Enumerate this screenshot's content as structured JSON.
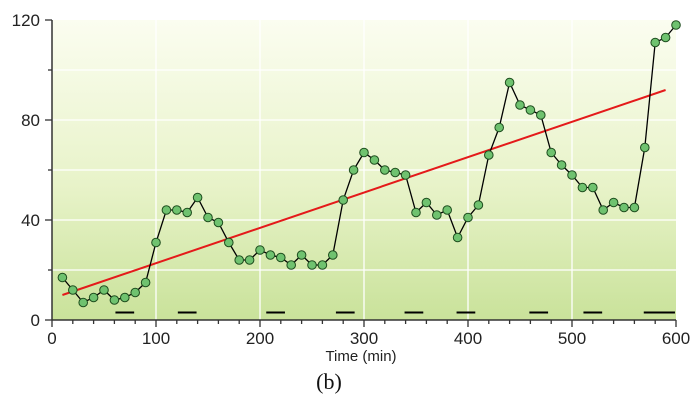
{
  "chart_data": {
    "type": "line",
    "title": "",
    "caption": "(b)",
    "xlabel": "Time (min)",
    "ylabel": "",
    "xlim": [
      0,
      600
    ],
    "ylim": [
      0,
      120
    ],
    "xticks": [
      "0",
      "100",
      "200",
      "300",
      "400",
      "500",
      "600"
    ],
    "yticks": [
      "0",
      "40",
      "80",
      "120"
    ],
    "grid": true,
    "background": "vertical gradient, pale yellow-green to light green",
    "series": [
      {
        "kind": "line-with-markers",
        "color": "#000000",
        "marker_color": "#6fc26f",
        "x": [
          10,
          20,
          30,
          40,
          50,
          60,
          70,
          80,
          90,
          100,
          110,
          120,
          130,
          140,
          150,
          160,
          170,
          180,
          190,
          200,
          210,
          220,
          230,
          240,
          250,
          260,
          270,
          280,
          290,
          300,
          310,
          320,
          330,
          340,
          350,
          360,
          370,
          380,
          390,
          400,
          410,
          420,
          430,
          440,
          450,
          460,
          470,
          480,
          490,
          500,
          510,
          520,
          530,
          540,
          550,
          560,
          570,
          580,
          590,
          600
        ],
        "y": [
          17,
          12,
          7,
          9,
          12,
          8,
          9,
          11,
          15,
          31,
          44,
          44,
          43,
          49,
          41,
          39,
          31,
          24,
          24,
          28,
          26,
          25,
          22,
          26,
          22,
          22,
          26,
          48,
          60,
          67,
          64,
          60,
          59,
          58,
          43,
          47,
          42,
          44,
          33,
          41,
          46,
          66,
          77,
          95,
          86,
          84,
          82,
          67,
          62,
          58,
          53,
          53,
          44,
          47,
          45,
          45,
          69,
          111,
          113,
          118
        ]
      },
      {
        "kind": "trend-line",
        "color": "#e41a1a",
        "x": [
          10,
          590
        ],
        "y": [
          10,
          92
        ]
      },
      {
        "kind": "short-horizontal-marks",
        "color": "#000000",
        "y": 3,
        "x_centers": [
          70,
          130,
          215,
          282,
          348,
          398,
          468,
          520,
          578,
          590
        ]
      }
    ]
  }
}
